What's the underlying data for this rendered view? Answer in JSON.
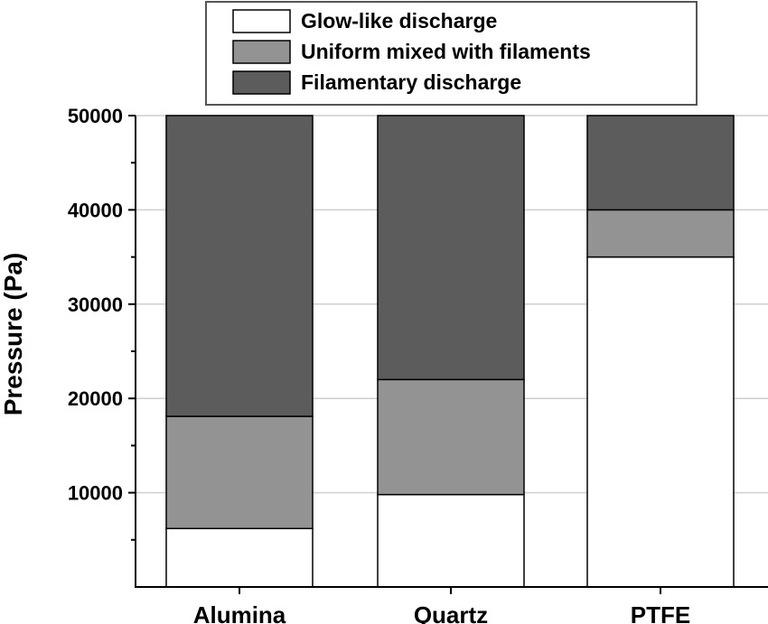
{
  "chart_data": {
    "type": "bar",
    "stacked": true,
    "categories": [
      "Alumina",
      "Quartz",
      "PTFE"
    ],
    "series": [
      {
        "name": "Glow-like discharge",
        "color": "#ffffff",
        "values": [
          6200,
          9800,
          35000
        ]
      },
      {
        "name": "Uniform mixed with filaments",
        "color": "#939393",
        "values": [
          11900,
          12200,
          5000
        ]
      },
      {
        "name": "Filamentary discharge",
        "color": "#5c5c5c",
        "values": [
          31900,
          28000,
          10000
        ]
      }
    ],
    "title": "",
    "xlabel": "",
    "ylabel": "Pressure (Pa)",
    "ylim": [
      0,
      50000
    ],
    "yticks": [
      10000,
      20000,
      30000,
      40000,
      50000
    ],
    "ytick_labels": [
      "10000",
      "20000",
      "30000",
      "40000",
      "50000"
    ],
    "grid": "horizontal",
    "legend_position": "top"
  }
}
